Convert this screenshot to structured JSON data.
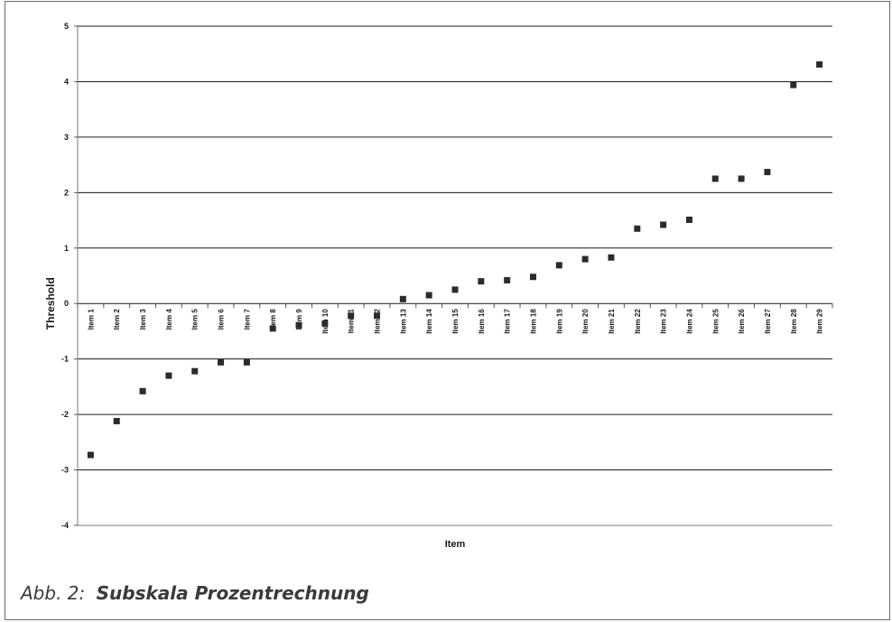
{
  "chart_data": {
    "type": "scatter",
    "xlabel": "Item",
    "ylabel": "Threshold",
    "ylim": [
      -4,
      5
    ],
    "yticks": [
      5,
      4,
      3,
      2,
      1,
      0,
      -1,
      -2,
      -3,
      -4
    ],
    "grid": true,
    "marker": "square",
    "marker_color": "#2b2b2b",
    "categories": [
      "Item 1",
      "Item 2",
      "Item 3",
      "Item 4",
      "Item 5",
      "Item 6",
      "Item 7",
      "Item 8",
      "Item 9",
      "Item 10",
      "Item 11",
      "Item 12",
      "Item 13",
      "Item 14",
      "Item 15",
      "Item 16",
      "Item 17",
      "Item 18",
      "Item 19",
      "Item 20",
      "Item 21",
      "Item 22",
      "Item 23",
      "Item 24",
      "Item 25",
      "Item 26",
      "Item 27",
      "Item 28",
      "Item 29"
    ],
    "values": [
      -2.73,
      -2.12,
      -1.58,
      -1.3,
      -1.22,
      -1.06,
      -1.06,
      -0.45,
      -0.39,
      -0.36,
      -0.22,
      -0.22,
      0.08,
      0.15,
      0.25,
      0.4,
      0.42,
      0.48,
      0.69,
      0.8,
      0.83,
      1.35,
      1.42,
      1.51,
      2.25,
      2.25,
      2.37,
      3.94,
      4.31
    ]
  },
  "caption": {
    "label": "Abb. 2:",
    "title": "Subskala Prozentrechnung"
  }
}
